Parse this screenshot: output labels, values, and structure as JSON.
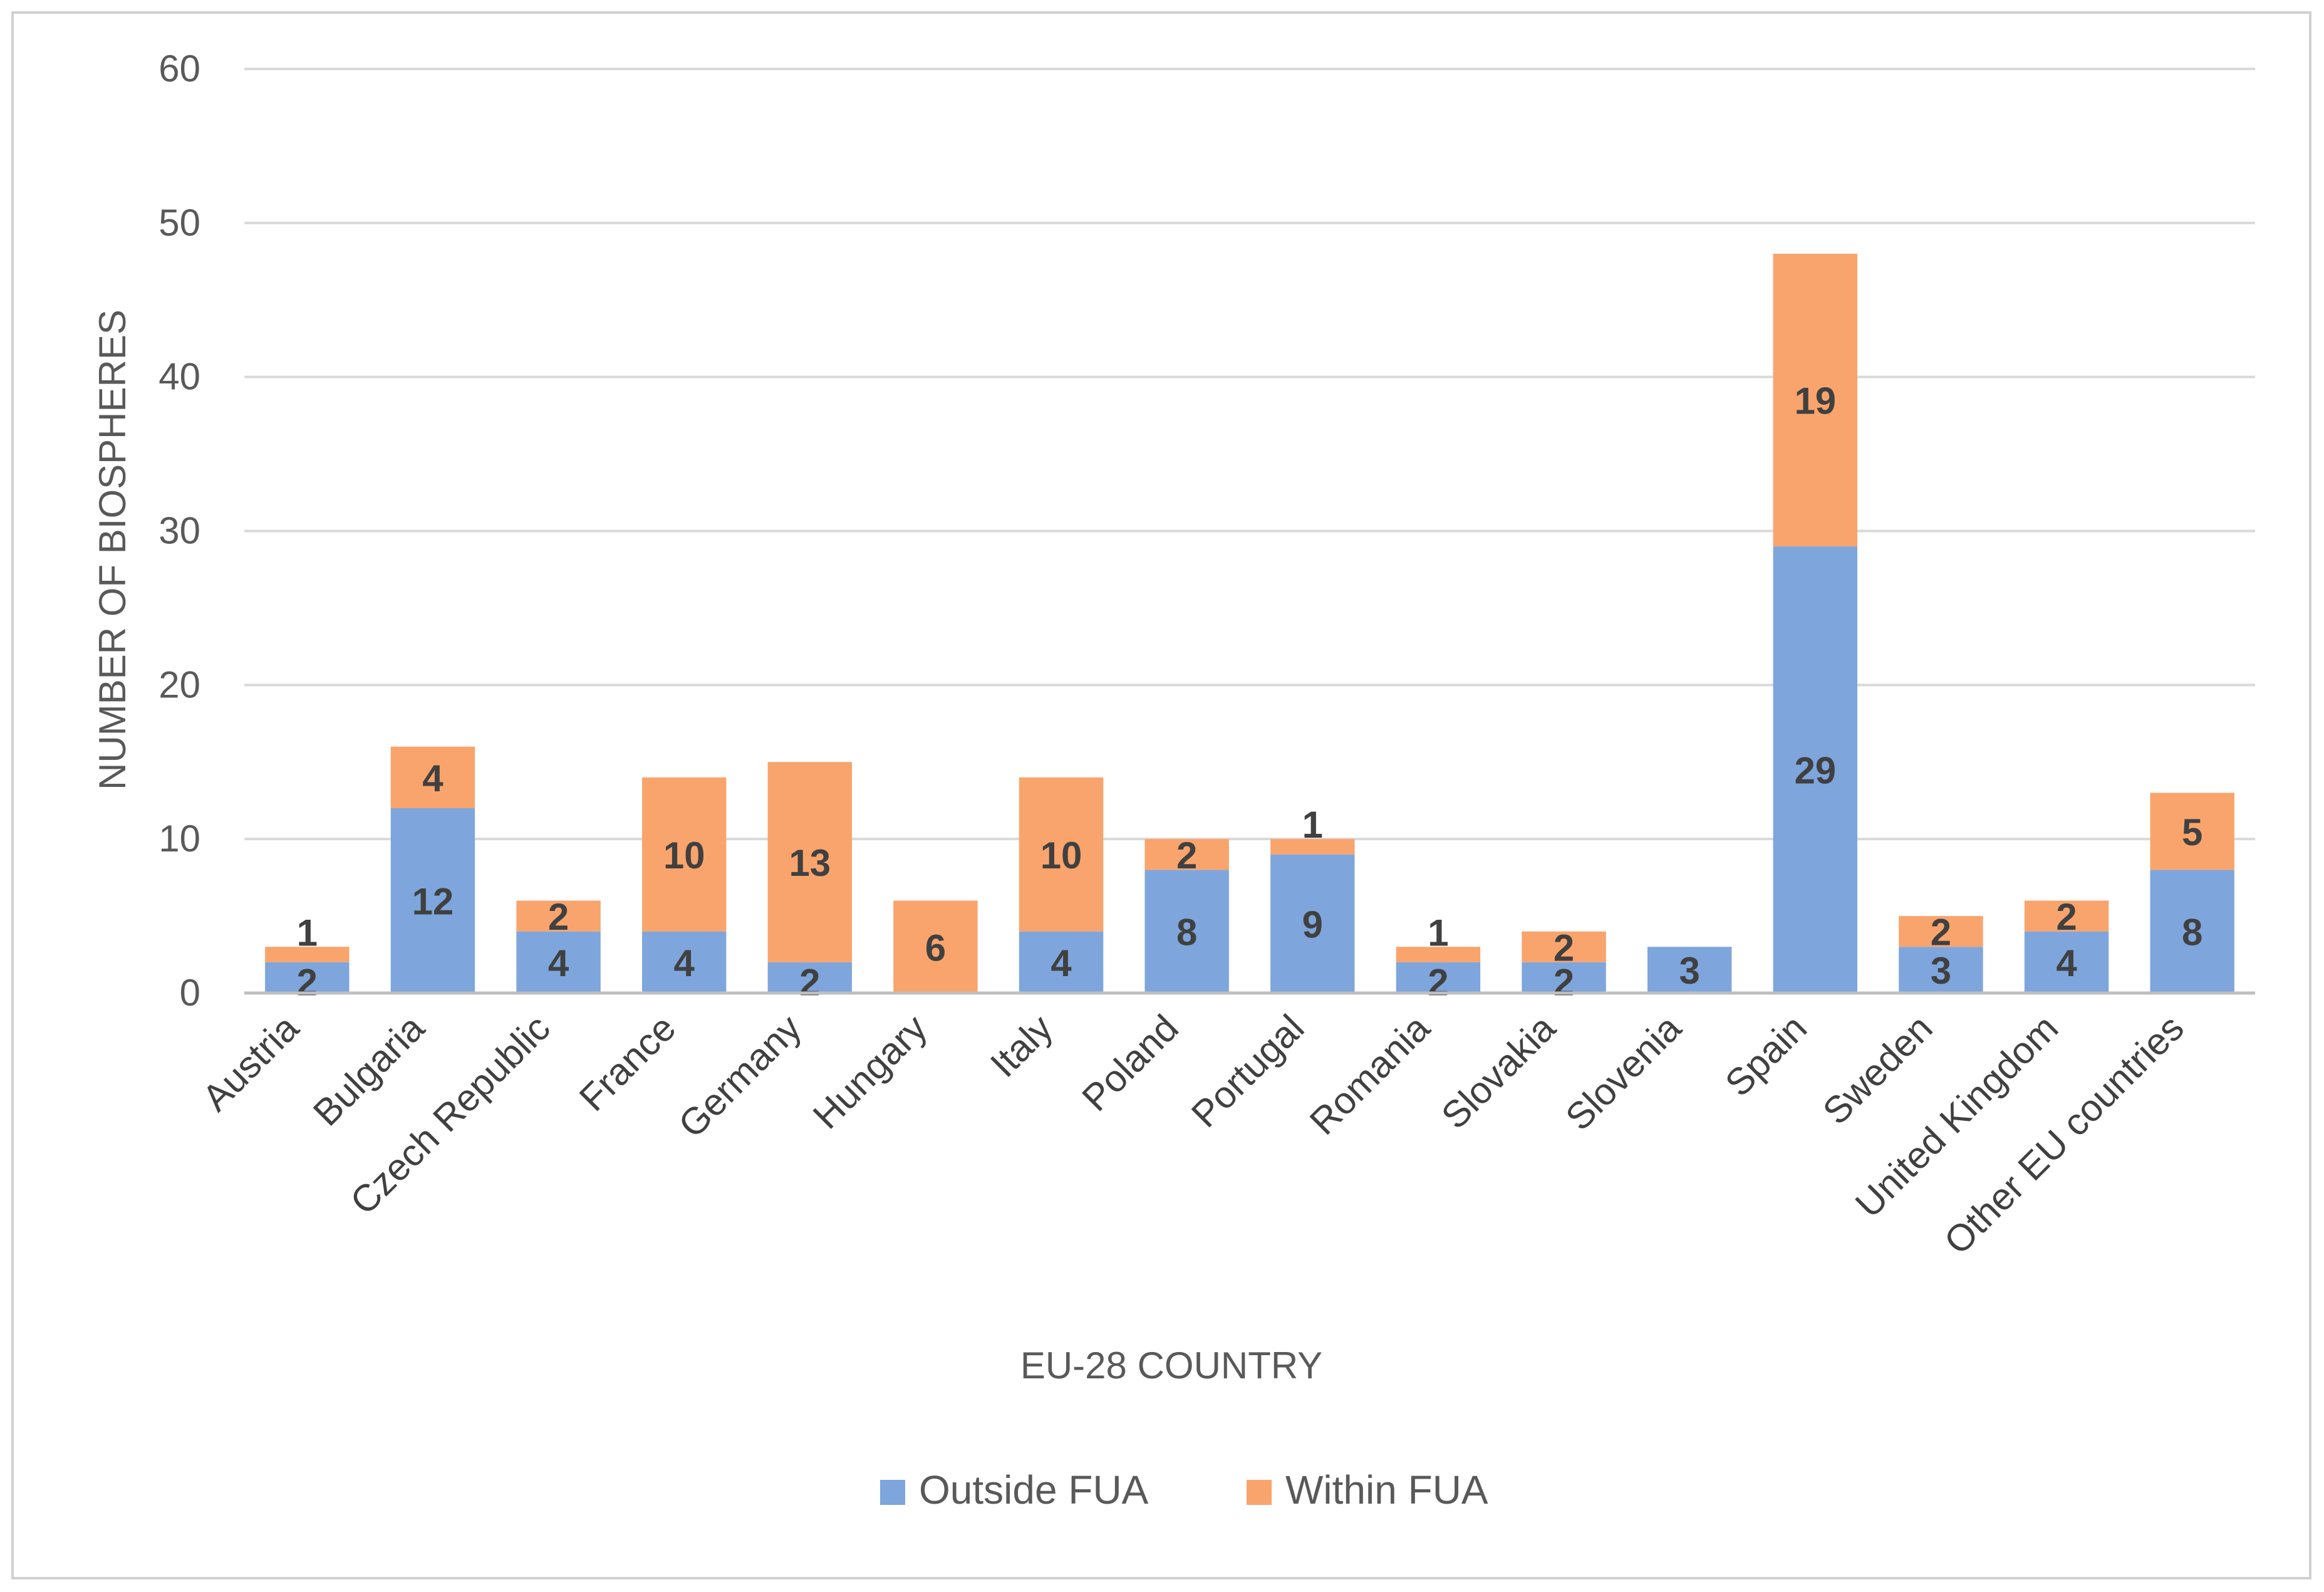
{
  "chart_data": {
    "type": "bar",
    "stacked": true,
    "title": "",
    "xlabel": "EU-28 COUNTRY",
    "ylabel": "NUMBER OF BIOSPHERES",
    "ylim": [
      0,
      60
    ],
    "yticks": [
      0,
      10,
      20,
      30,
      40,
      50,
      60
    ],
    "grid": true,
    "legend_position": "bottom",
    "categories": [
      "Austria",
      "Bulgaria",
      "Czech Republic",
      "France",
      "Germany",
      "Hungary",
      "Italy",
      "Poland",
      "Portugal",
      "Romania",
      "Slovakia",
      "Slovenia",
      "Spain",
      "Sweden",
      "United Kingdom",
      "Other EU countries"
    ],
    "series": [
      {
        "name": "Outside FUA",
        "color": "#7ea6dc",
        "values": [
          2,
          12,
          4,
          4,
          2,
          0,
          4,
          8,
          9,
          2,
          2,
          3,
          29,
          3,
          4,
          8
        ],
        "labels": [
          "2",
          "12",
          "4",
          "4",
          "2",
          "",
          "4",
          "8",
          "9",
          "2",
          "2",
          "3",
          "29",
          "3",
          "4",
          "8"
        ]
      },
      {
        "name": "Within FUA",
        "color": "#f9a46c",
        "values": [
          1,
          4,
          2,
          10,
          13,
          6,
          10,
          2,
          1,
          1,
          2,
          0,
          19,
          2,
          2,
          5
        ],
        "labels": [
          "1",
          "4",
          "2",
          "10",
          "13",
          "6",
          "10",
          "2",
          "1",
          "1",
          "2",
          "",
          "19",
          "2",
          "2",
          "5"
        ]
      }
    ]
  }
}
